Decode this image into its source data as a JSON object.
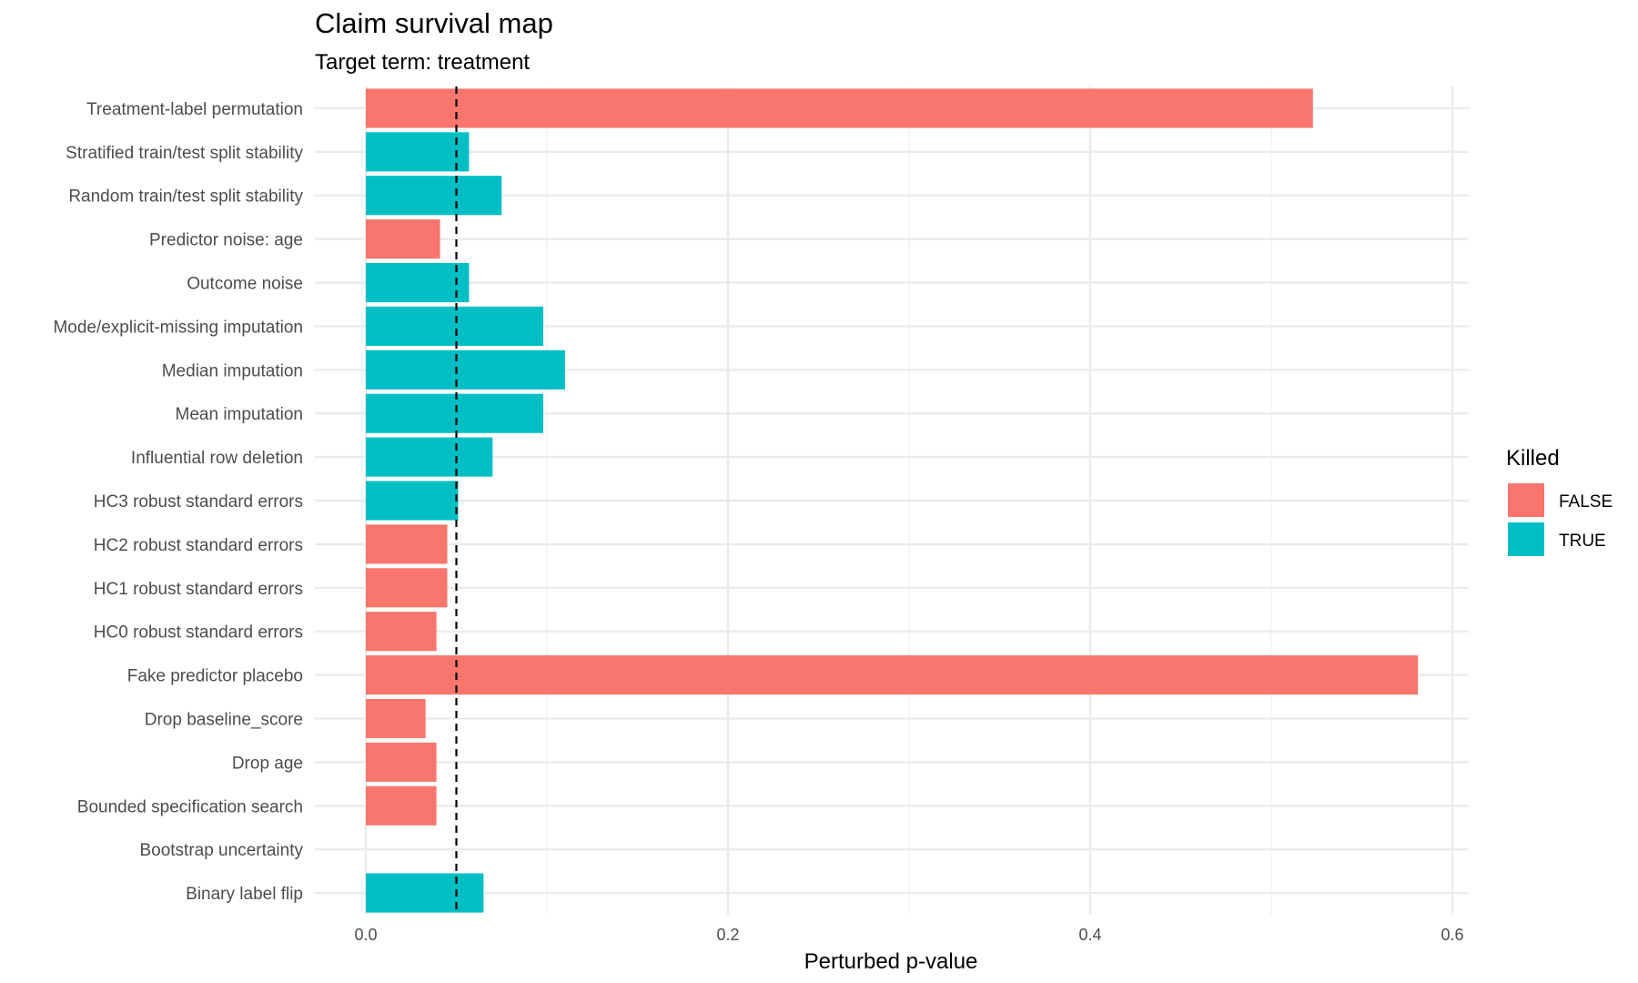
{
  "chart_data": {
    "type": "bar",
    "orientation": "horizontal",
    "title": "Claim survival map",
    "subtitle": "Target term: treatment",
    "xlabel": "Perturbed p-value",
    "ylabel": "",
    "xlim": [
      -0.03,
      0.61
    ],
    "x_ticks": [
      0.0,
      0.2,
      0.4,
      0.6
    ],
    "x_tick_labels": [
      "0.0",
      "0.2",
      "0.4",
      "0.6"
    ],
    "reference_line": {
      "x": 0.05,
      "style": "dashed"
    },
    "grid": true,
    "legend": {
      "title": "Killed",
      "position": "right",
      "entries": [
        {
          "label": "FALSE",
          "color": "#F8766D"
        },
        {
          "label": "TRUE",
          "color": "#00BFC4"
        }
      ]
    },
    "categories": [
      "Treatment-label permutation",
      "Stratified train/test split stability",
      "Random train/test split stability",
      "Predictor noise: age",
      "Outcome noise",
      "Mode/explicit-missing imputation",
      "Median imputation",
      "Mean imputation",
      "Influential row deletion",
      "HC3 robust standard errors",
      "HC2 robust standard errors",
      "HC1 robust standard errors",
      "HC0 robust standard errors",
      "Fake predictor placebo",
      "Drop baseline_score",
      "Drop age",
      "Bounded specification search",
      "Bootstrap uncertainty",
      "Binary label flip"
    ],
    "values": [
      0.523,
      0.057,
      0.075,
      0.041,
      0.057,
      0.098,
      0.11,
      0.098,
      0.07,
      0.051,
      0.045,
      0.045,
      0.039,
      0.581,
      0.033,
      0.039,
      0.039,
      null,
      0.065
    ],
    "killed": [
      "FALSE",
      "TRUE",
      "TRUE",
      "FALSE",
      "TRUE",
      "TRUE",
      "TRUE",
      "TRUE",
      "TRUE",
      "TRUE",
      "FALSE",
      "FALSE",
      "FALSE",
      "FALSE",
      "FALSE",
      "FALSE",
      "FALSE",
      null,
      "TRUE"
    ]
  }
}
